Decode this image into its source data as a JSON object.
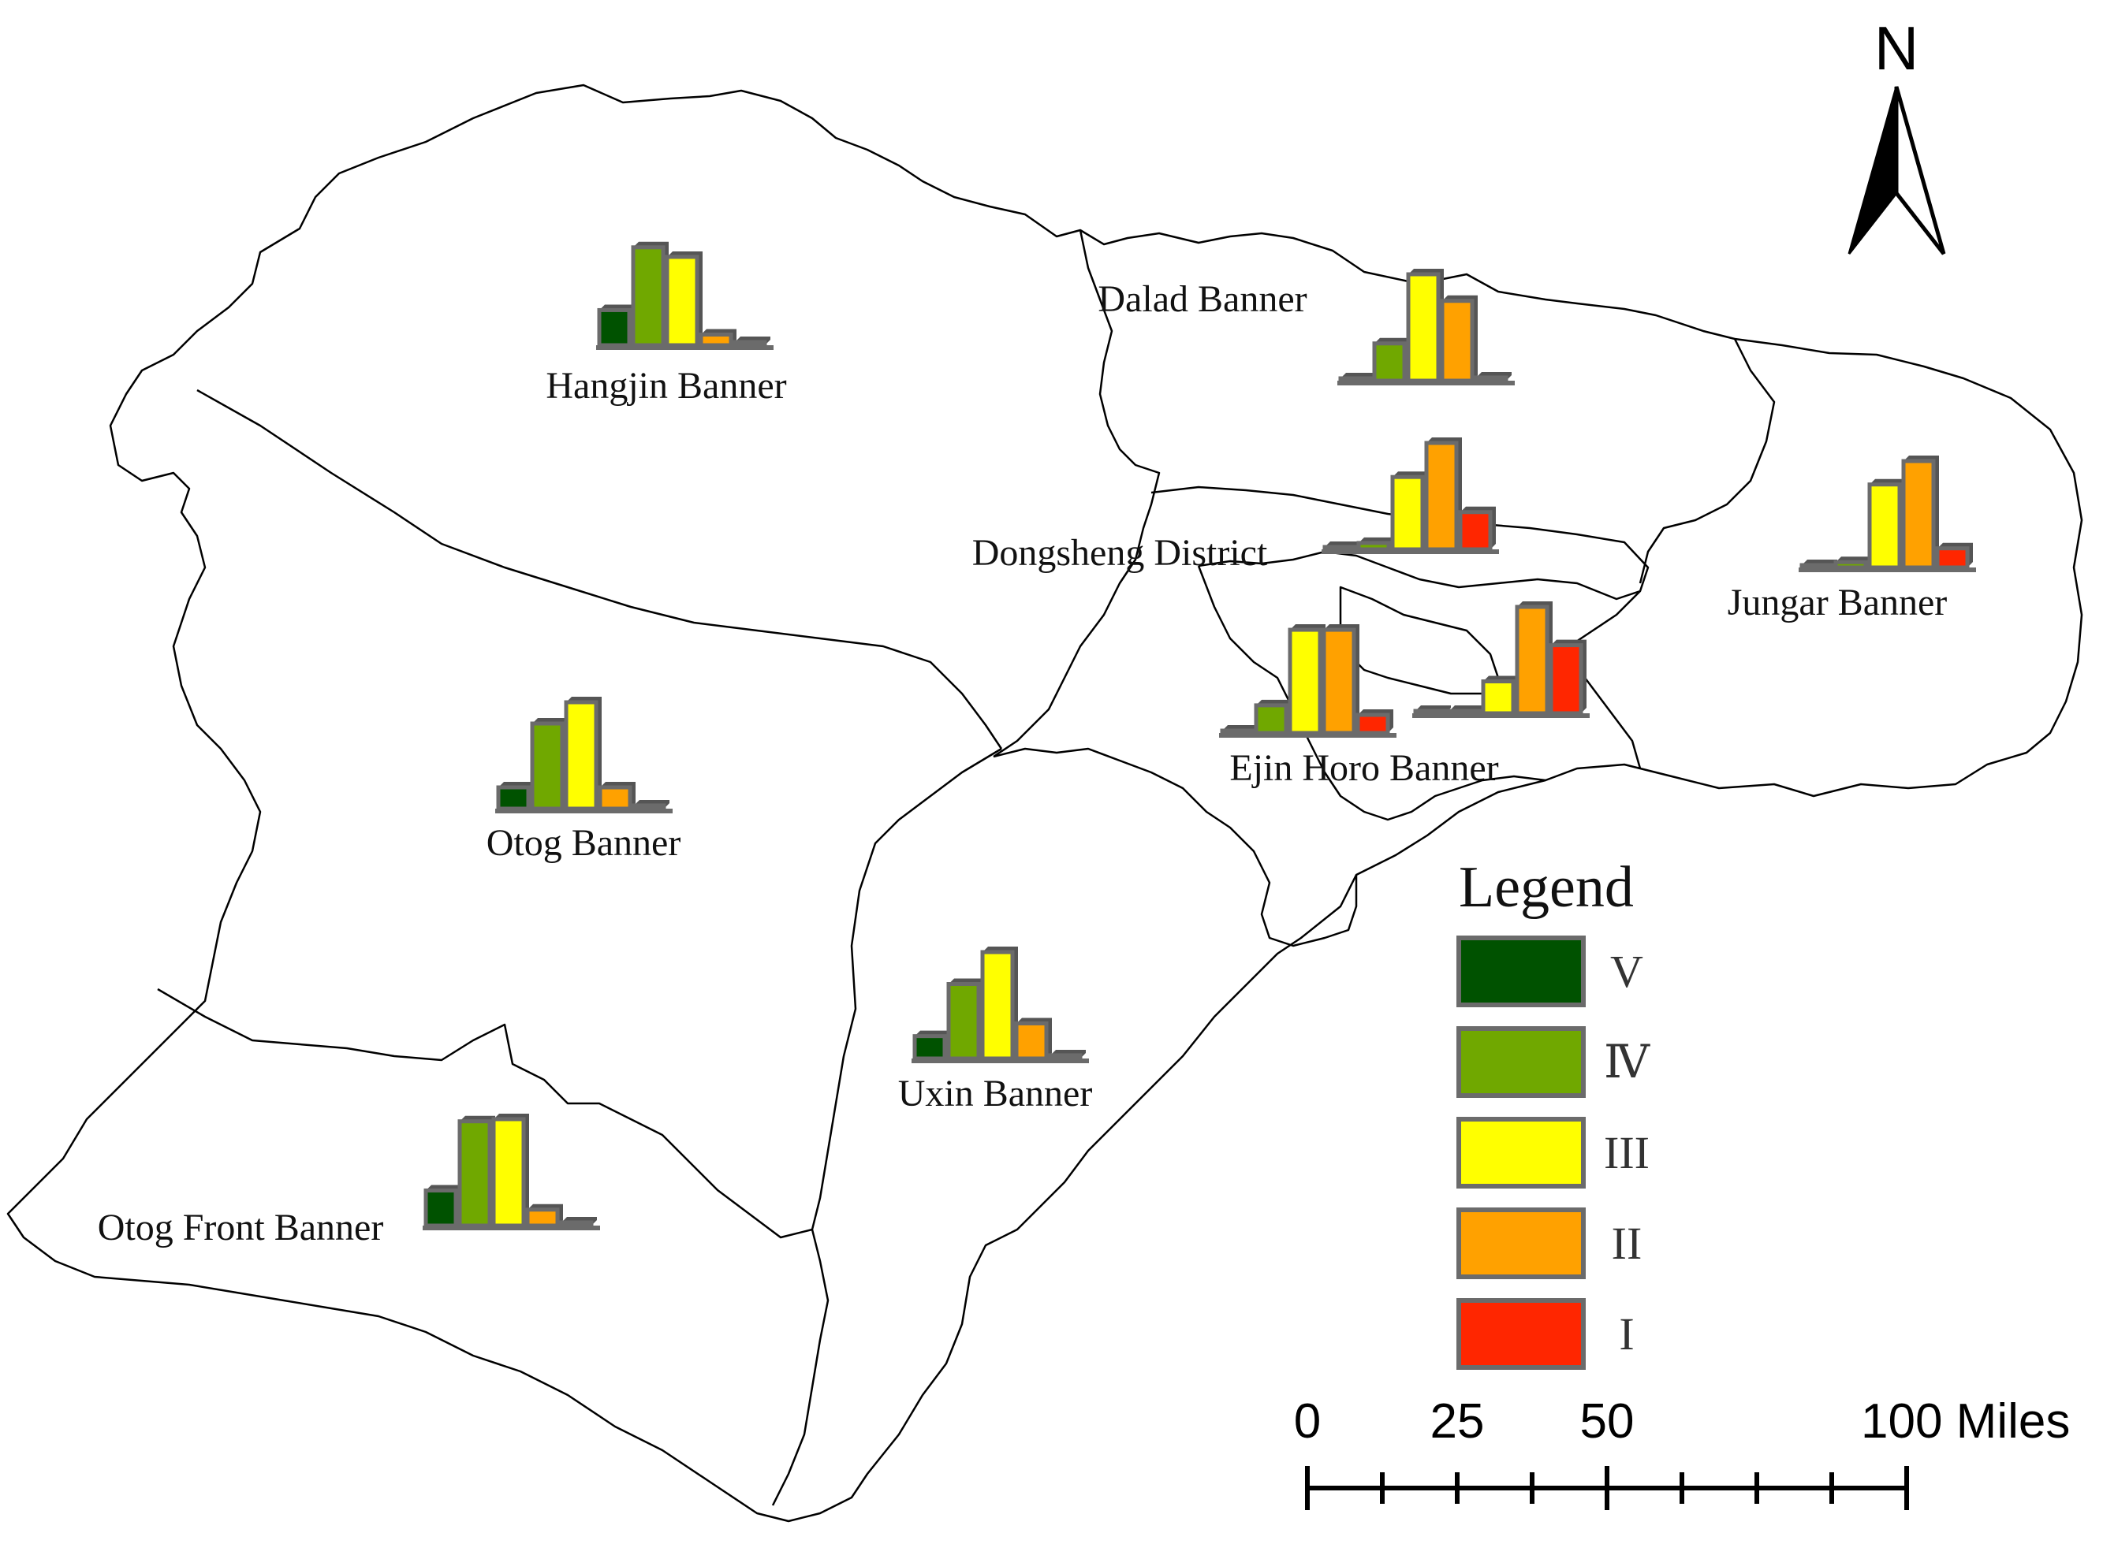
{
  "map": {
    "regions": [
      {
        "id": "hangjin",
        "label": "Hangjin Banner",
        "counts": [
          0.33,
          0.92,
          0.83,
          0.1,
          0.03
        ]
      },
      {
        "id": "dalad",
        "label": "Dalad Banner",
        "counts": [
          0.0,
          0.35,
          1.0,
          0.75,
          0.03
        ]
      },
      {
        "id": "dongsheng",
        "label": "Dongsheng District",
        "counts": [
          0.0,
          0.06,
          0.68,
          1.0,
          0.35
        ]
      },
      {
        "id": "jungar",
        "label": "Jungar Banner",
        "counts": [
          0.0,
          0.05,
          0.78,
          1.0,
          0.18
        ]
      },
      {
        "id": "otog",
        "label": "Otog Banner",
        "counts": [
          0.2,
          0.8,
          1.0,
          0.2,
          0.03
        ]
      },
      {
        "id": "ejinhoro",
        "label": "Ejin Horo Banner",
        "counts": [
          0.0,
          0.26,
          0.97,
          0.97,
          0.17
        ]
      },
      {
        "id": "ejinhoro_b",
        "label": "",
        "counts": [
          0.0,
          0.0,
          0.3,
          1.0,
          0.64
        ]
      },
      {
        "id": "uxin",
        "label": "Uxin Banner",
        "counts": [
          0.21,
          0.7,
          1.0,
          0.33,
          0.03
        ]
      },
      {
        "id": "otogfront",
        "label": "Otog Front Banner",
        "counts": [
          0.33,
          0.98,
          1.0,
          0.15,
          0.03
        ]
      }
    ]
  },
  "legend": {
    "title": "Legend",
    "items": [
      {
        "label": "V",
        "color": "#005200"
      },
      {
        "label": "Ⅳ",
        "color": "#70A800"
      },
      {
        "label": "III",
        "color": "#FFFF00"
      },
      {
        "label": "II",
        "color": "#FFA100"
      },
      {
        "label": "I",
        "color": "#FF2600"
      }
    ]
  },
  "scale_bar": {
    "labels": [
      "0",
      "25",
      "50",
      "100 Miles"
    ],
    "values": [
      0,
      25,
      50,
      100
    ]
  },
  "north_arrow": {
    "label": "N",
    "icon": "north-arrow-icon"
  },
  "colors": {
    "bar_outline": "#6b6b6b",
    "boundary": "#000000"
  }
}
